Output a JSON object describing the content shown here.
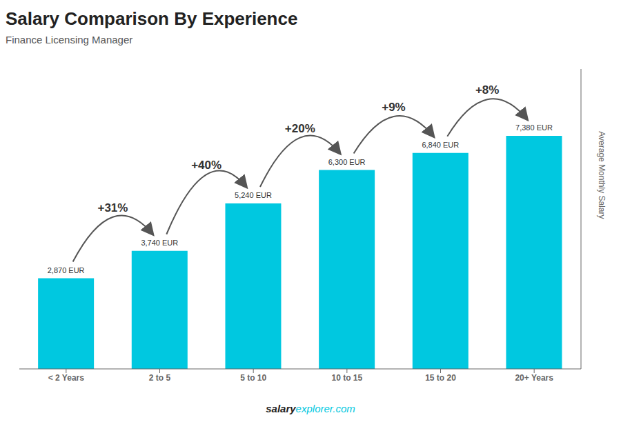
{
  "chart_data": {
    "type": "bar",
    "title": "Salary Comparison By Experience",
    "subtitle": "Finance Licensing Manager",
    "ylabel": "Average Monthly Salary",
    "categories": [
      "< 2 Years",
      "2 to 5",
      "5 to 10",
      "10 to 15",
      "15 to 20",
      "20+ Years"
    ],
    "values": [
      2870,
      3740,
      5240,
      6300,
      6840,
      7380
    ],
    "value_labels": [
      "2,870 EUR",
      "3,740 EUR",
      "5,240 EUR",
      "6,300 EUR",
      "6,840 EUR",
      "7,380 EUR"
    ],
    "data_labels": true,
    "annotations": [
      "+31%",
      "+40%",
      "+20%",
      "+9%",
      "+8%"
    ],
    "footer": [
      "salary",
      "explorer.com"
    ],
    "color": "#00c8e0",
    "ylim": [
      0,
      9500
    ],
    "tick_labels": "x",
    "grid": false
  }
}
